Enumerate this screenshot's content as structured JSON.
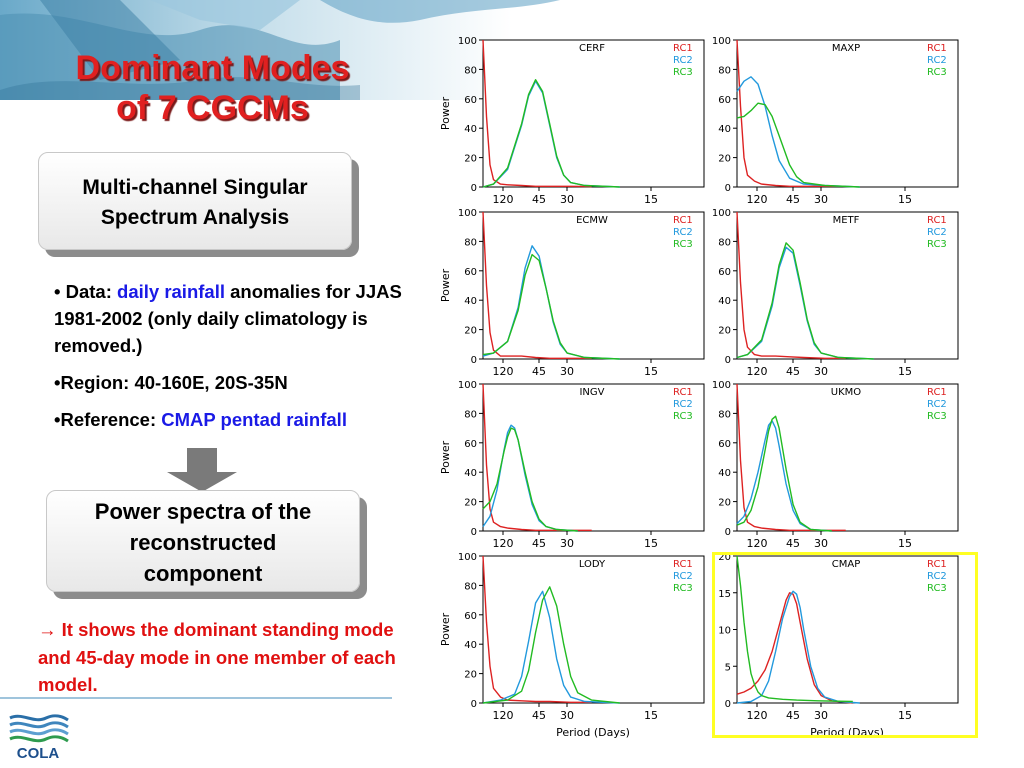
{
  "slide": {
    "title_line1": "Dominant Modes",
    "title_line2": "of 7 CGCMs",
    "box1_line1": "Multi-channel Singular",
    "box1_line2": "Spectrum Analysis",
    "bullet1_prefix": "• Data: ",
    "bullet1_highlight": "daily rainfall",
    "bullet1_rest": " anomalies for JJAS 1981-2002 (only daily climatology is removed.)",
    "bullet2": "•Region: 40-160E, 20S-35N",
    "bullet3_prefix": "•Reference: ",
    "bullet3_highlight": "CMAP pentad rainfall",
    "box2_line1": "Power spectra of the",
    "box2_line2": "reconstructed",
    "box2_line3": "component",
    "note_arrow": "→",
    "note_text": "  It shows the dominant standing mode and 45-day mode in one member of each model.",
    "logo_text": "COLA",
    "colors": {
      "title": "#e02020",
      "note": "#e01010",
      "highlight_text": "#1a1ae6",
      "rc1": "#dd2222",
      "rc2": "#2299dd",
      "rc3": "#22bb22",
      "cmap_box": "#ffff22"
    }
  },
  "chart_data": [
    {
      "type": "line",
      "title": "CERF",
      "ylabel": "Power",
      "xlabel": "",
      "ylim": [
        0,
        100
      ],
      "yticks": [
        "0",
        "20",
        "40",
        "60",
        "80",
        "100"
      ],
      "xticks": [
        "120",
        "45",
        "30",
        "15"
      ],
      "series": [
        {
          "name": "RC1",
          "color": "#dd2222",
          "x": [
            1,
            2,
            3,
            4,
            6,
            8,
            12,
            16,
            20,
            26,
            32
          ],
          "y": [
            100,
            48,
            15,
            5,
            2,
            1.5,
            1,
            0.5,
            0.5,
            0.5,
            0.3
          ]
        },
        {
          "name": "RC2",
          "color": "#2299dd",
          "x": [
            1,
            4,
            8,
            12,
            14,
            16,
            18,
            20,
            22,
            24,
            26,
            30,
            40
          ],
          "y": [
            0,
            2,
            12,
            42,
            62,
            72,
            64,
            42,
            20,
            8,
            3,
            1,
            0
          ]
        },
        {
          "name": "RC3",
          "color": "#22bb22",
          "x": [
            1,
            4,
            8,
            12,
            14,
            16,
            18,
            20,
            22,
            24,
            26,
            30,
            40
          ],
          "y": [
            0,
            2,
            13,
            43,
            63,
            73,
            65,
            43,
            21,
            8,
            3,
            1,
            0
          ]
        }
      ]
    },
    {
      "type": "line",
      "title": "MAXP",
      "ylabel": "",
      "xlabel": "",
      "ylim": [
        0,
        100
      ],
      "yticks": [
        "0",
        "20",
        "40",
        "60",
        "80",
        "100"
      ],
      "xticks": [
        "120",
        "45",
        "30",
        "15"
      ],
      "series": [
        {
          "name": "RC1",
          "color": "#dd2222",
          "x": [
            1,
            2,
            3,
            4,
            6,
            8,
            12,
            16,
            20,
            26,
            32
          ],
          "y": [
            100,
            55,
            20,
            8,
            4,
            2,
            1,
            0.5,
            0.5,
            0.5,
            0.5
          ]
        },
        {
          "name": "RC2",
          "color": "#2299dd",
          "x": [
            1,
            3,
            5,
            7,
            9,
            11,
            13,
            16,
            20,
            26,
            36
          ],
          "y": [
            65,
            72,
            75,
            70,
            55,
            35,
            18,
            6,
            2,
            1,
            0
          ]
        },
        {
          "name": "RC3",
          "color": "#22bb22",
          "x": [
            1,
            3,
            5,
            7,
            9,
            11,
            13,
            16,
            18,
            20,
            26,
            36
          ],
          "y": [
            47,
            48,
            52,
            57,
            56,
            48,
            35,
            15,
            7,
            3,
            1,
            0
          ]
        }
      ]
    },
    {
      "type": "line",
      "title": "ECMW",
      "ylabel": "Power",
      "xlabel": "",
      "ylim": [
        0,
        100
      ],
      "yticks": [
        "0",
        "20",
        "40",
        "60",
        "80",
        "100"
      ],
      "xticks": [
        "120",
        "45",
        "30",
        "15"
      ],
      "series": [
        {
          "name": "RC1",
          "color": "#dd2222",
          "x": [
            1,
            2,
            3,
            4,
            6,
            8,
            12,
            16,
            20,
            26,
            32
          ],
          "y": [
            100,
            50,
            18,
            6,
            2,
            2,
            2,
            1,
            0.5,
            0.5,
            0.5
          ]
        },
        {
          "name": "RC2",
          "color": "#2299dd",
          "x": [
            1,
            4,
            8,
            11,
            13,
            15,
            17,
            19,
            21,
            23,
            25,
            30,
            40
          ],
          "y": [
            2,
            4,
            12,
            35,
            62,
            77,
            70,
            48,
            25,
            10,
            4,
            1,
            0
          ]
        },
        {
          "name": "RC3",
          "color": "#22bb22",
          "x": [
            1,
            4,
            8,
            11,
            13,
            15,
            17,
            19,
            21,
            23,
            25,
            30,
            40
          ],
          "y": [
            3,
            4,
            12,
            33,
            57,
            71,
            67,
            48,
            26,
            11,
            4,
            1,
            0
          ]
        }
      ]
    },
    {
      "type": "line",
      "title": "METF",
      "ylabel": "",
      "xlabel": "",
      "ylim": [
        0,
        100
      ],
      "yticks": [
        "0",
        "20",
        "40",
        "60",
        "80",
        "100"
      ],
      "xticks": [
        "120",
        "45",
        "30",
        "15"
      ],
      "series": [
        {
          "name": "RC1",
          "color": "#dd2222",
          "x": [
            1,
            2,
            3,
            4,
            6,
            8,
            12,
            16,
            20,
            26,
            32
          ],
          "y": [
            100,
            52,
            20,
            8,
            3,
            2,
            2,
            1.5,
            1,
            0.5,
            0.5
          ]
        },
        {
          "name": "RC2",
          "color": "#2299dd",
          "x": [
            1,
            4,
            8,
            11,
            13,
            15,
            17,
            19,
            21,
            23,
            25,
            30,
            40
          ],
          "y": [
            1,
            3,
            12,
            36,
            62,
            76,
            72,
            50,
            26,
            10,
            4,
            1,
            0
          ]
        },
        {
          "name": "RC3",
          "color": "#22bb22",
          "x": [
            1,
            4,
            8,
            11,
            13,
            15,
            17,
            19,
            21,
            23,
            25,
            30,
            40
          ],
          "y": [
            1,
            3,
            13,
            38,
            64,
            79,
            74,
            52,
            27,
            11,
            4,
            1,
            0
          ]
        }
      ]
    },
    {
      "type": "line",
      "title": "INGV",
      "ylabel": "Power",
      "xlabel": "",
      "ylim": [
        0,
        100
      ],
      "yticks": [
        "0",
        "20",
        "40",
        "60",
        "80",
        "100"
      ],
      "xticks": [
        "120",
        "45",
        "30",
        "15"
      ],
      "series": [
        {
          "name": "RC1",
          "color": "#dd2222",
          "x": [
            1,
            2,
            3,
            4,
            6,
            8,
            12,
            16,
            20,
            26,
            32
          ],
          "y": [
            100,
            45,
            15,
            6,
            3,
            2,
            1,
            0.5,
            0.5,
            0.5,
            0.5
          ]
        },
        {
          "name": "RC2",
          "color": "#2299dd",
          "x": [
            1,
            3,
            5,
            7,
            8,
            9,
            10,
            11,
            13,
            15,
            17,
            19,
            22,
            28
          ],
          "y": [
            3,
            10,
            28,
            55,
            67,
            72,
            70,
            62,
            38,
            18,
            7,
            3,
            1,
            0
          ]
        },
        {
          "name": "RC3",
          "color": "#22bb22",
          "x": [
            1,
            3,
            5,
            7,
            8,
            9,
            10,
            11,
            13,
            15,
            17,
            19,
            22,
            28
          ],
          "y": [
            15,
            20,
            32,
            54,
            64,
            70,
            69,
            62,
            40,
            20,
            8,
            3,
            1,
            0
          ]
        }
      ]
    },
    {
      "type": "line",
      "title": "UKMO",
      "ylabel": "",
      "xlabel": "",
      "ylim": [
        0,
        100
      ],
      "yticks": [
        "0",
        "20",
        "40",
        "60",
        "80",
        "100"
      ],
      "xticks": [
        "120",
        "45",
        "30",
        "15"
      ],
      "series": [
        {
          "name": "RC1",
          "color": "#dd2222",
          "x": [
            1,
            2,
            3,
            4,
            6,
            8,
            12,
            16,
            20,
            26,
            32
          ],
          "y": [
            100,
            48,
            16,
            6,
            3,
            2,
            1,
            0.5,
            0.5,
            0.5,
            0.5
          ]
        },
        {
          "name": "RC2",
          "color": "#2299dd",
          "x": [
            1,
            3,
            5,
            7,
            9,
            10,
            11,
            12,
            13,
            15,
            17,
            19,
            22,
            28
          ],
          "y": [
            5,
            10,
            22,
            40,
            62,
            72,
            75,
            70,
            58,
            32,
            14,
            5,
            1,
            0
          ]
        },
        {
          "name": "RC3",
          "color": "#22bb22",
          "x": [
            1,
            3,
            5,
            7,
            9,
            10,
            11,
            12,
            13,
            15,
            17,
            19,
            22,
            28
          ],
          "y": [
            4,
            6,
            14,
            30,
            55,
            68,
            76,
            78,
            70,
            42,
            18,
            6,
            1,
            0
          ]
        }
      ]
    },
    {
      "type": "line",
      "title": "LODY",
      "ylabel": "Power",
      "xlabel": "Period  (Days)",
      "ylim": [
        0,
        100
      ],
      "yticks": [
        "0",
        "20",
        "40",
        "60",
        "80",
        "100"
      ],
      "xticks": [
        "120",
        "45",
        "30",
        "15"
      ],
      "series": [
        {
          "name": "RC1",
          "color": "#dd2222",
          "x": [
            1,
            2,
            3,
            4,
            6,
            8,
            12,
            16,
            20,
            26,
            32
          ],
          "y": [
            100,
            55,
            25,
            10,
            4,
            2,
            1.5,
            1,
            1,
            0.5,
            0.5
          ]
        },
        {
          "name": "RC2",
          "color": "#2299dd",
          "x": [
            1,
            6,
            10,
            12,
            14,
            16,
            18,
            20,
            22,
            24,
            26,
            30,
            40
          ],
          "y": [
            0,
            2,
            6,
            18,
            42,
            68,
            76,
            58,
            30,
            12,
            4,
            1,
            0
          ]
        },
        {
          "name": "RC3",
          "color": "#22bb22",
          "x": [
            1,
            8,
            12,
            14,
            16,
            18,
            20,
            22,
            24,
            26,
            28,
            32,
            40
          ],
          "y": [
            0,
            2,
            8,
            22,
            48,
            70,
            79,
            66,
            40,
            18,
            7,
            2,
            0
          ]
        }
      ]
    },
    {
      "type": "line",
      "title": "CMAP",
      "ylabel": "",
      "xlabel": "Period  (Days)",
      "ylim": [
        0,
        20
      ],
      "yticks": [
        "0",
        "5",
        "10",
        "15",
        "20"
      ],
      "xticks": [
        "120",
        "45",
        "30",
        "15"
      ],
      "series": [
        {
          "name": "RC1",
          "color": "#dd2222",
          "x": [
            1,
            3,
            5,
            7,
            9,
            11,
            13,
            15,
            16,
            17,
            18,
            19,
            21,
            23,
            25,
            28,
            34
          ],
          "y": [
            1.2,
            1.5,
            2,
            3,
            4.5,
            7,
            10.5,
            14,
            15,
            14.8,
            13.5,
            11,
            6,
            2.5,
            1,
            0.3,
            0
          ]
        },
        {
          "name": "RC2",
          "color": "#2299dd",
          "x": [
            1,
            5,
            8,
            10,
            12,
            14,
            16,
            17,
            18,
            19,
            20,
            22,
            24,
            26,
            30,
            36
          ],
          "y": [
            0,
            0.2,
            1,
            3,
            7,
            11.5,
            14.5,
            15.2,
            14.8,
            13,
            10,
            5,
            2,
            0.8,
            0.2,
            0
          ]
        },
        {
          "name": "RC3",
          "color": "#22bb22",
          "x": [
            1,
            2,
            3,
            4,
            5,
            6,
            7,
            8,
            10,
            14,
            18,
            24,
            34
          ],
          "y": [
            20,
            16,
            11,
            7,
            4,
            2.5,
            1.5,
            1,
            0.7,
            0.5,
            0.4,
            0.3,
            0.2
          ]
        }
      ]
    }
  ]
}
